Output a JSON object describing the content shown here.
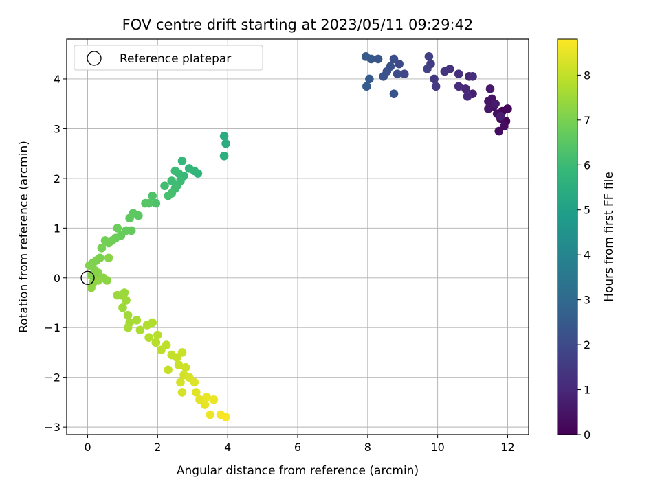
{
  "chart_data": {
    "type": "scatter",
    "title": "FOV centre drift starting at 2023/05/11 09:29:42",
    "xlabel": "Angular distance from reference (arcmin)",
    "ylabel": "Rotation from reference (arcmin)",
    "xlim": [
      -0.6,
      12.6
    ],
    "ylim": [
      -3.15,
      4.8
    ],
    "xticks": [
      "0",
      "2",
      "4",
      "6",
      "8",
      "10",
      "12"
    ],
    "yticks": [
      "−3",
      "−2",
      "−1",
      "0",
      "1",
      "2",
      "3",
      "4"
    ],
    "grid": true,
    "legend": {
      "position": "top-left",
      "entries": [
        {
          "label": "Reference platepar",
          "marker": "open-circle"
        }
      ]
    },
    "reference_point": [
      0.0,
      0.0
    ],
    "colorbar": {
      "label": "Hours from first FF file",
      "colormap": "viridis",
      "range": [
        0,
        8.8
      ],
      "ticks": [
        "0",
        "1",
        "2",
        "3",
        "4",
        "5",
        "6",
        "7",
        "8"
      ]
    },
    "colormap_stops": [
      "#440154",
      "#482878",
      "#3e4989",
      "#31688e",
      "#26828e",
      "#1f9e89",
      "#35b779",
      "#6ece58",
      "#b5de2b",
      "#fde725"
    ],
    "points": [
      [
        11.95,
        3.15,
        0.05
      ],
      [
        11.85,
        3.35,
        0.1
      ],
      [
        12.0,
        3.4,
        0.15
      ],
      [
        11.8,
        3.2,
        0.2
      ],
      [
        11.9,
        3.05,
        0.25
      ],
      [
        11.75,
        2.95,
        0.3
      ],
      [
        11.7,
        3.3,
        0.35
      ],
      [
        11.6,
        3.45,
        0.4
      ],
      [
        11.55,
        3.6,
        0.45
      ],
      [
        11.45,
        3.55,
        0.5
      ],
      [
        11.45,
        3.4,
        0.55
      ],
      [
        11.5,
        3.8,
        0.6
      ],
      [
        11.65,
        3.5,
        0.65
      ],
      [
        11.8,
        3.25,
        0.7
      ],
      [
        11.0,
        3.7,
        0.8
      ],
      [
        10.9,
        4.05,
        0.9
      ],
      [
        10.8,
        3.8,
        1.0
      ],
      [
        10.85,
        3.65,
        1.05
      ],
      [
        10.6,
        3.85,
        1.1
      ],
      [
        11.0,
        4.05,
        1.15
      ],
      [
        10.6,
        4.1,
        1.2
      ],
      [
        10.35,
        4.2,
        1.3
      ],
      [
        10.2,
        4.15,
        1.35
      ],
      [
        9.9,
        4.0,
        1.45
      ],
      [
        9.95,
        3.85,
        1.5
      ],
      [
        9.8,
        4.3,
        1.6
      ],
      [
        9.75,
        4.45,
        1.7
      ],
      [
        9.7,
        4.2,
        1.75
      ],
      [
        9.05,
        4.1,
        1.9
      ],
      [
        8.9,
        4.3,
        2.0
      ],
      [
        8.85,
        4.1,
        2.05
      ],
      [
        8.75,
        4.4,
        2.1
      ],
      [
        8.65,
        4.25,
        2.15
      ],
      [
        8.55,
        4.15,
        2.2
      ],
      [
        8.45,
        4.05,
        2.25
      ],
      [
        8.75,
        3.7,
        2.3
      ],
      [
        8.3,
        4.4,
        2.35
      ],
      [
        8.1,
        4.4,
        2.4
      ],
      [
        7.95,
        4.45,
        2.45
      ],
      [
        8.05,
        4.0,
        2.5
      ],
      [
        7.97,
        3.85,
        2.55
      ],
      [
        3.9,
        2.85,
        5.4
      ],
      [
        3.95,
        2.7,
        5.45
      ],
      [
        3.9,
        2.45,
        5.5
      ],
      [
        3.15,
        2.1,
        5.7
      ],
      [
        3.05,
        2.15,
        5.75
      ],
      [
        2.9,
        2.2,
        5.8
      ],
      [
        2.7,
        2.35,
        5.85
      ],
      [
        2.75,
        2.05,
        5.9
      ],
      [
        2.6,
        2.1,
        5.95
      ],
      [
        2.5,
        2.15,
        6.0
      ],
      [
        2.65,
        1.95,
        6.0
      ],
      [
        2.55,
        1.85,
        6.05
      ],
      [
        2.4,
        1.95,
        6.05
      ],
      [
        2.5,
        1.8,
        6.1
      ],
      [
        2.2,
        1.85,
        6.1
      ],
      [
        2.4,
        1.7,
        6.15
      ],
      [
        2.3,
        1.65,
        6.2
      ],
      [
        1.95,
        1.5,
        6.3
      ],
      [
        1.85,
        1.65,
        6.35
      ],
      [
        1.75,
        1.5,
        6.4
      ],
      [
        1.65,
        1.5,
        6.45
      ],
      [
        1.45,
        1.25,
        6.5
      ],
      [
        1.3,
        1.3,
        6.55
      ],
      [
        1.2,
        1.2,
        6.6
      ],
      [
        1.25,
        0.95,
        6.65
      ],
      [
        1.1,
        0.95,
        6.7
      ],
      [
        0.95,
        0.85,
        6.75
      ],
      [
        0.85,
        1.0,
        6.8
      ],
      [
        0.8,
        0.8,
        6.8
      ],
      [
        0.7,
        0.75,
        6.85
      ],
      [
        0.6,
        0.7,
        6.9
      ],
      [
        0.5,
        0.75,
        6.9
      ],
      [
        0.4,
        0.6,
        6.95
      ],
      [
        0.35,
        0.4,
        7.0
      ],
      [
        0.25,
        0.35,
        7.05
      ],
      [
        0.15,
        0.3,
        7.05
      ],
      [
        0.05,
        0.25,
        7.1
      ],
      [
        0.2,
        0.15,
        7.1
      ],
      [
        0.1,
        0.05,
        7.15
      ],
      [
        0.3,
        0.1,
        7.2
      ],
      [
        0.45,
        0.0,
        7.2
      ],
      [
        0.55,
        -0.05,
        7.25
      ],
      [
        0.15,
        -0.1,
        7.25
      ],
      [
        0.1,
        -0.2,
        7.3
      ],
      [
        0.3,
        -0.05,
        7.3
      ],
      [
        0.6,
        0.4,
        7.2
      ],
      [
        0.95,
        -0.35,
        7.4
      ],
      [
        1.05,
        -0.3,
        7.45
      ],
      [
        0.85,
        -0.35,
        7.45
      ],
      [
        1.1,
        -0.45,
        7.5
      ],
      [
        1.0,
        -0.6,
        7.5
      ],
      [
        1.15,
        -0.75,
        7.55
      ],
      [
        1.2,
        -0.9,
        7.6
      ],
      [
        1.15,
        -1.0,
        7.65
      ],
      [
        1.4,
        -0.85,
        7.65
      ],
      [
        1.5,
        -1.05,
        7.7
      ],
      [
        1.7,
        -0.95,
        7.75
      ],
      [
        1.85,
        -0.9,
        7.75
      ],
      [
        1.75,
        -1.2,
        7.8
      ],
      [
        2.0,
        -1.15,
        7.85
      ],
      [
        1.95,
        -1.3,
        7.85
      ],
      [
        2.1,
        -1.45,
        7.9
      ],
      [
        2.25,
        -1.35,
        7.95
      ],
      [
        2.4,
        -1.55,
        8.0
      ],
      [
        2.3,
        -1.85,
        8.05
      ],
      [
        2.55,
        -1.6,
        8.05
      ],
      [
        2.7,
        -1.5,
        8.1
      ],
      [
        2.6,
        -1.75,
        8.1
      ],
      [
        2.8,
        -1.8,
        8.15
      ],
      [
        2.75,
        -1.95,
        8.2
      ],
      [
        2.65,
        -2.1,
        8.25
      ],
      [
        2.7,
        -2.3,
        8.25
      ],
      [
        2.9,
        -2.0,
        8.3
      ],
      [
        3.05,
        -2.1,
        8.35
      ],
      [
        3.1,
        -2.3,
        8.4
      ],
      [
        3.2,
        -2.45,
        8.45
      ],
      [
        3.35,
        -2.55,
        8.5
      ],
      [
        3.4,
        -2.4,
        8.55
      ],
      [
        3.5,
        -2.75,
        8.6
      ],
      [
        3.8,
        -2.75,
        8.7
      ],
      [
        3.95,
        -2.8,
        8.75
      ],
      [
        3.6,
        -2.45,
        8.55
      ]
    ]
  }
}
